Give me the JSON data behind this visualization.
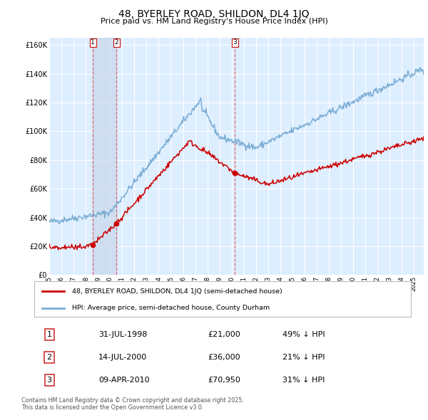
{
  "title": "48, BYERLEY ROAD, SHILDON, DL4 1JQ",
  "subtitle": "Price paid vs. HM Land Registry's House Price Index (HPI)",
  "legend_red": "48, BYERLEY ROAD, SHILDON, DL4 1JQ (semi-detached house)",
  "legend_blue": "HPI: Average price, semi-detached house, County Durham",
  "footer": "Contains HM Land Registry data © Crown copyright and database right 2025.\nThis data is licensed under the Open Government Licence v3.0.",
  "transactions": [
    {
      "num": 1,
      "date": "31-JUL-1998",
      "price": 21000,
      "pct": "49%",
      "direction": "↓",
      "x_year": 1998.58
    },
    {
      "num": 2,
      "date": "14-JUL-2000",
      "price": 36000,
      "pct": "21%",
      "direction": "↓",
      "x_year": 2000.54
    },
    {
      "num": 3,
      "date": "09-APR-2010",
      "price": 70950,
      "pct": "31%",
      "direction": "↓",
      "x_year": 2010.27
    }
  ],
  "ylim": [
    0,
    165000
  ],
  "xlim_start": 1995.0,
  "xlim_end": 2025.8,
  "background_color": "#ffffff",
  "plot_bg_color": "#ddeeff",
  "grid_color": "#ffffff",
  "red_color": "#cc0000",
  "blue_color": "#7aadd4",
  "dashed_color": "#e05050",
  "transaction_highlight": "#c8d8eb"
}
